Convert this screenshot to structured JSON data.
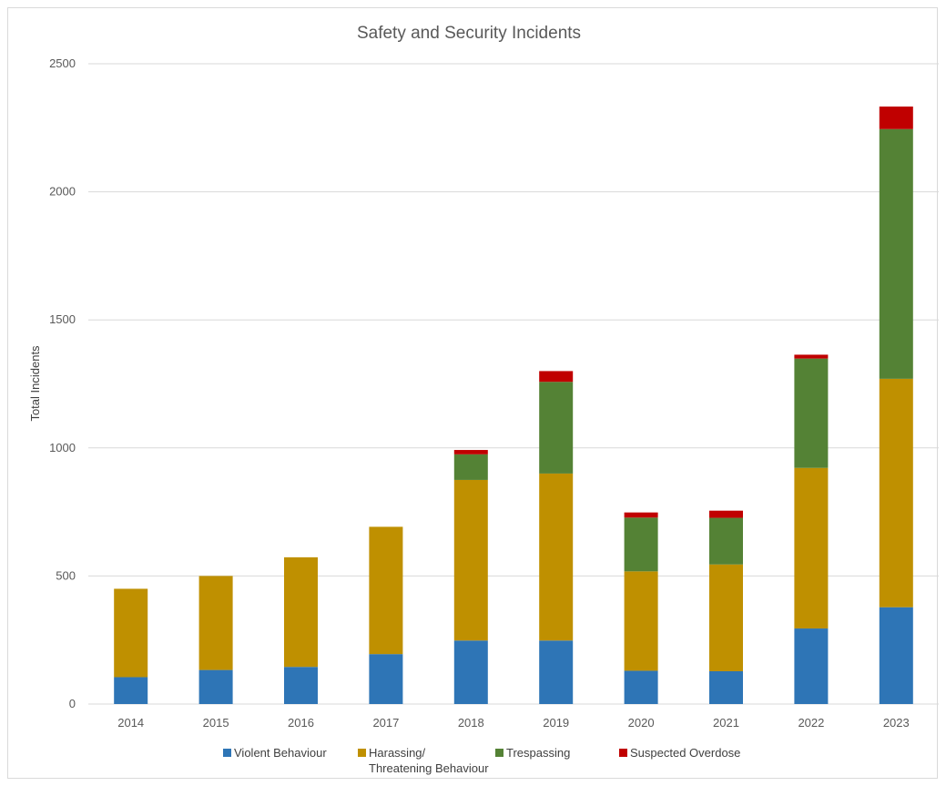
{
  "chart_data": {
    "type": "bar",
    "stacked": true,
    "title": "Safety and Security Incidents",
    "xlabel": "",
    "ylabel": "Total Incidents",
    "ylim": [
      0,
      2500
    ],
    "yticks": [
      0,
      500,
      1000,
      1500,
      2000,
      2500
    ],
    "grid": true,
    "legend_position": "bottom",
    "categories": [
      "2014",
      "2015",
      "2016",
      "2017",
      "2018",
      "2019",
      "2020",
      "2021",
      "2022",
      "2023"
    ],
    "series": [
      {
        "name": "Violent Behaviour",
        "color": "#2e75b6",
        "values": [
          105,
          133,
          145,
          195,
          248,
          248,
          130,
          128,
          295,
          378
        ]
      },
      {
        "name": "Harassing/ Threatening Behaviour",
        "name_lines": [
          "Harassing/",
          "Threatening Behaviour"
        ],
        "color": "#bf9000",
        "values": [
          345,
          367,
          428,
          497,
          627,
          652,
          388,
          417,
          627,
          892
        ]
      },
      {
        "name": "Trespassing",
        "color": "#548235",
        "values": [
          0,
          0,
          0,
          0,
          100,
          358,
          210,
          182,
          427,
          975
        ]
      },
      {
        "name": "Suspected Overdose",
        "color": "#c00000",
        "values": [
          0,
          0,
          0,
          0,
          17,
          42,
          20,
          28,
          15,
          88
        ]
      }
    ]
  }
}
